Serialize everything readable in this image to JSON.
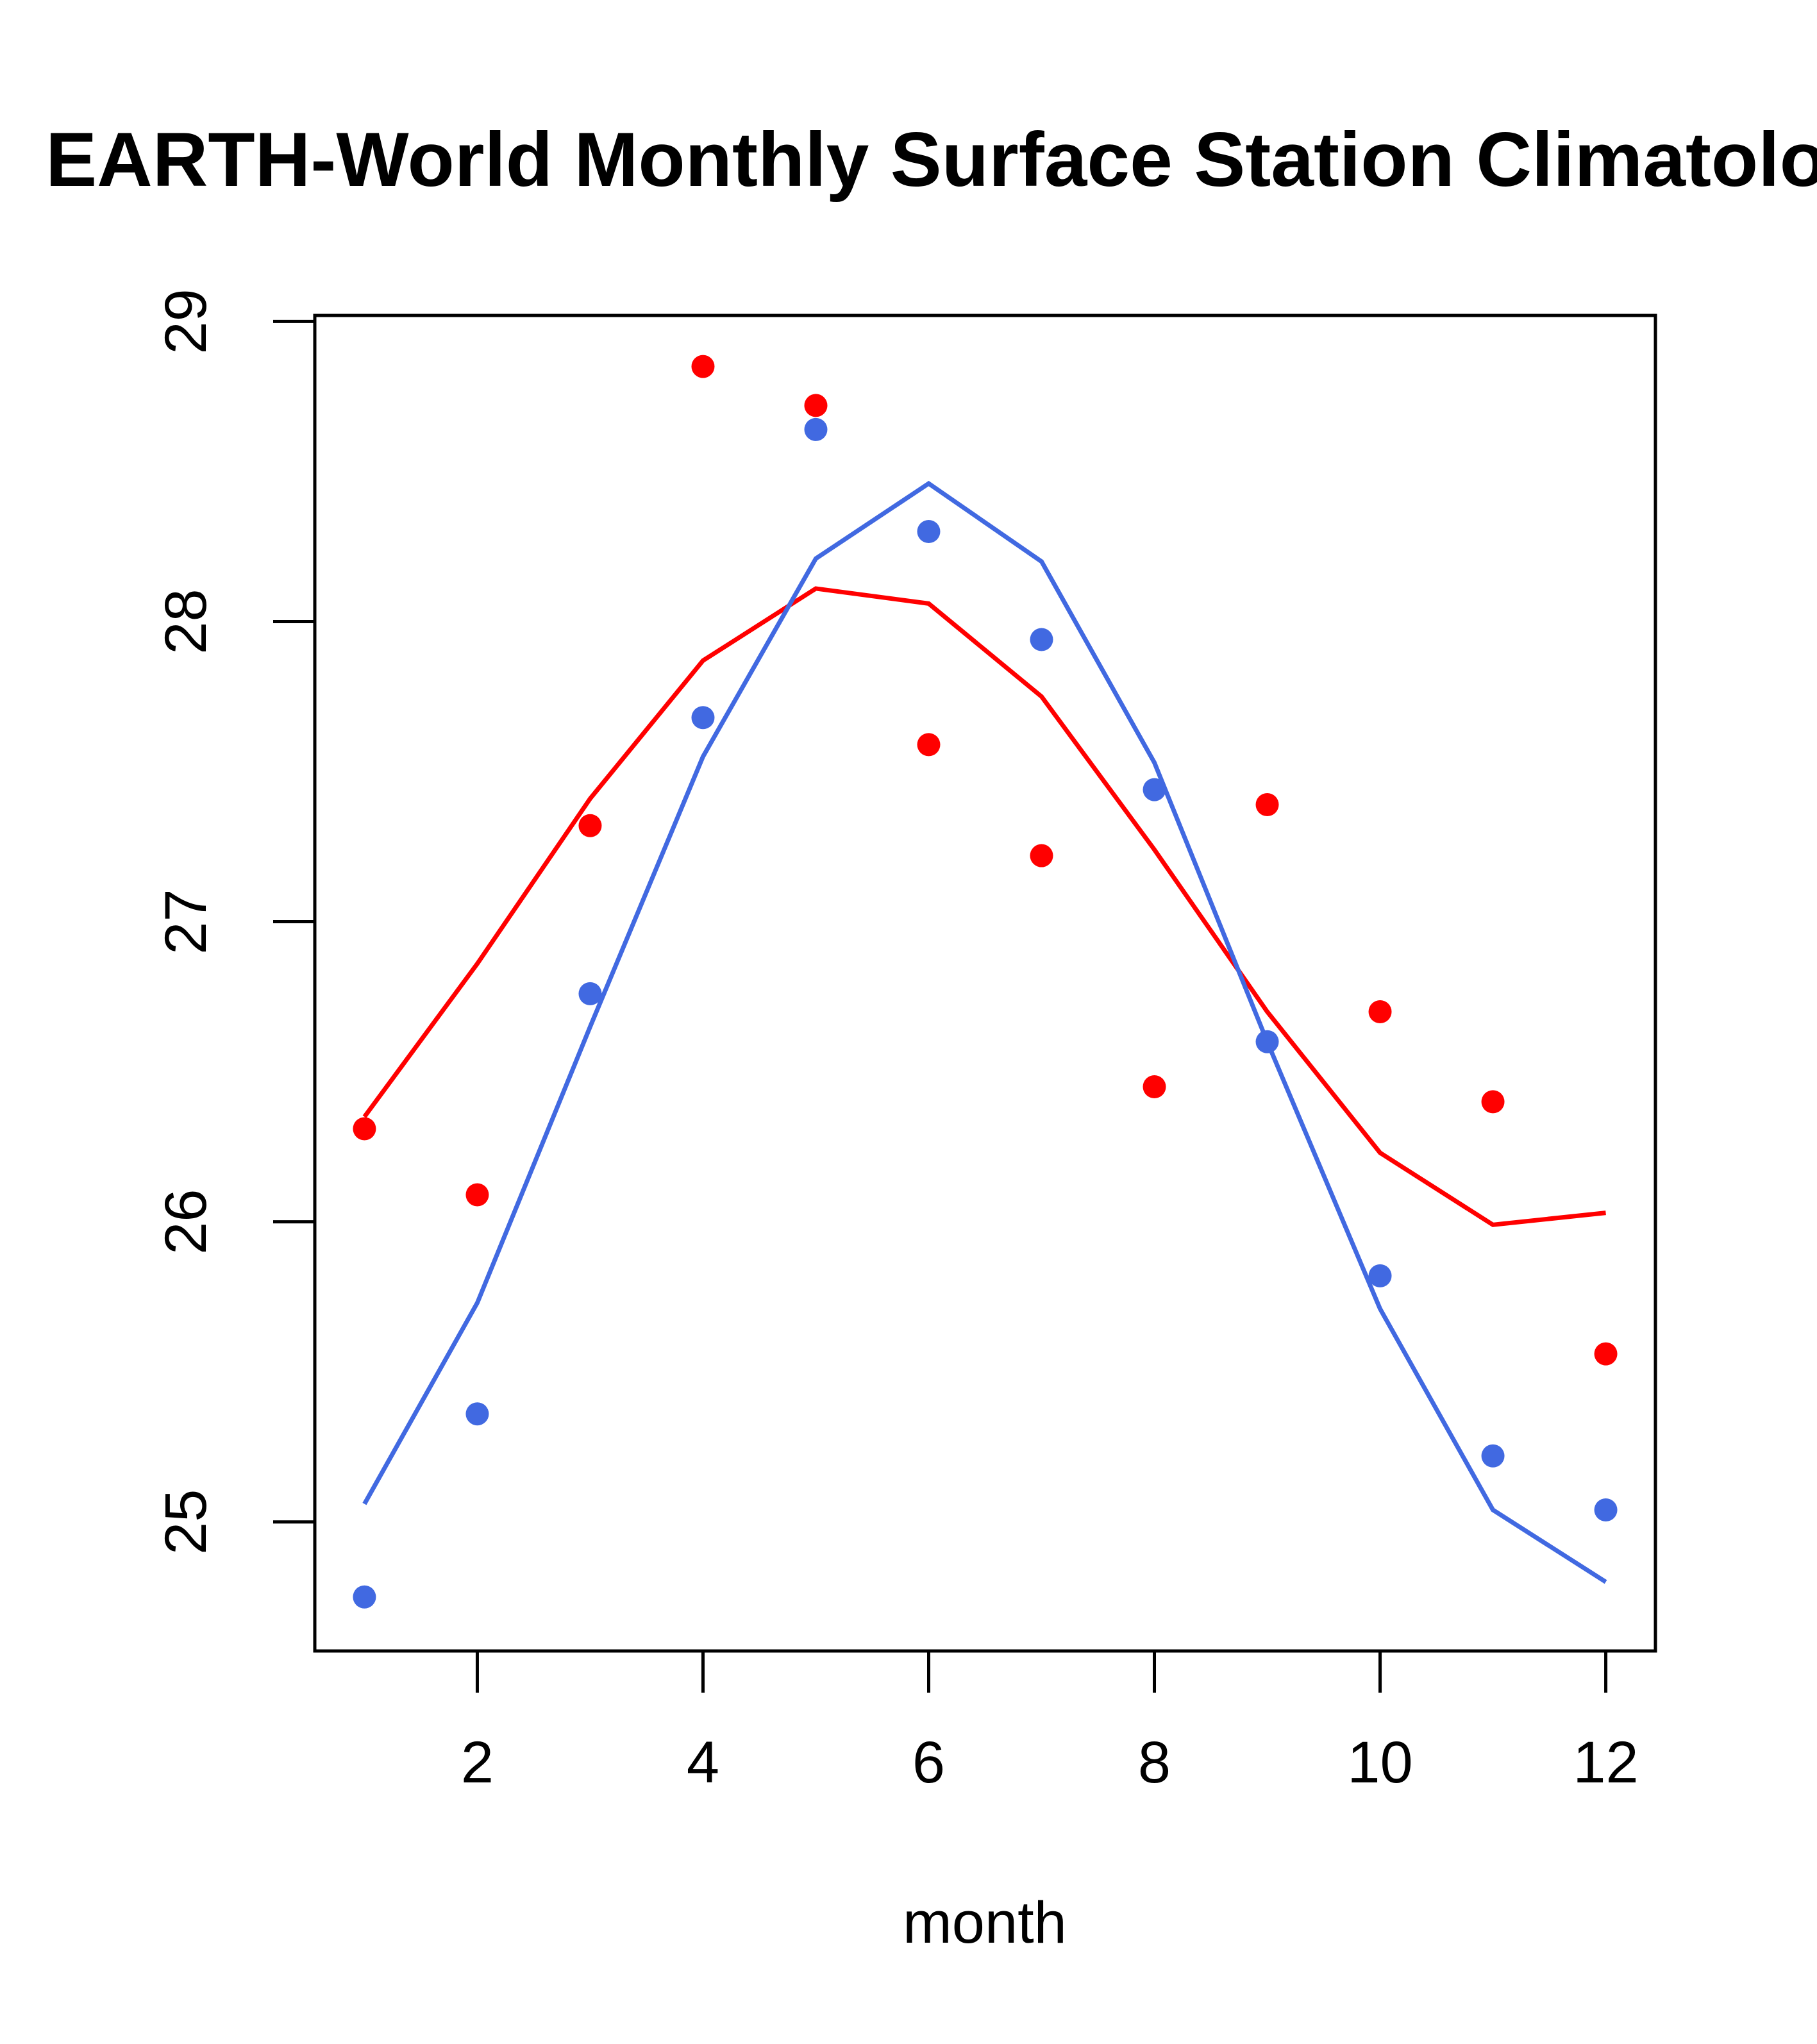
{
  "chart_data": {
    "type": "line",
    "title": "EARTH-World Monthly Surface Station Climatology",
    "xlabel": "month",
    "ylabel": "",
    "xlim": [
      0.56,
      12.44
    ],
    "ylim": [
      24.57,
      29.02
    ],
    "x_ticks": [
      2,
      4,
      6,
      8,
      10,
      12
    ],
    "x_tick_labels": [
      "2",
      "4",
      "6",
      "8",
      "10",
      "12"
    ],
    "y_ticks": [
      25,
      26,
      27,
      28,
      29
    ],
    "y_tick_labels": [
      "25",
      "26",
      "27",
      "28",
      "29"
    ],
    "grid": false,
    "legend": "none",
    "x": [
      1,
      2,
      3,
      4,
      5,
      6,
      7,
      8,
      9,
      10,
      11,
      12
    ],
    "series": [
      {
        "name": "red-points",
        "kind": "points",
        "color": "#ff0000",
        "values": [
          26.31,
          26.09,
          27.32,
          28.85,
          28.72,
          27.59,
          27.22,
          26.45,
          27.39,
          26.7,
          26.4,
          25.56
        ]
      },
      {
        "name": "blue-points",
        "kind": "points",
        "color": "#4169e1",
        "values": [
          24.75,
          25.36,
          26.76,
          27.68,
          28.64,
          28.3,
          27.94,
          27.44,
          26.6,
          25.82,
          25.22,
          25.04
        ]
      },
      {
        "name": "red-line",
        "kind": "line",
        "color": "#ff0000",
        "values": [
          26.35,
          26.86,
          27.41,
          27.87,
          28.11,
          28.06,
          27.75,
          27.24,
          26.7,
          26.23,
          25.99,
          26.03
        ]
      },
      {
        "name": "blue-line",
        "kind": "line",
        "color": "#4169e1",
        "values": [
          25.06,
          25.73,
          26.65,
          27.55,
          28.21,
          28.46,
          28.2,
          27.53,
          26.6,
          25.71,
          25.04,
          24.8
        ]
      }
    ]
  }
}
